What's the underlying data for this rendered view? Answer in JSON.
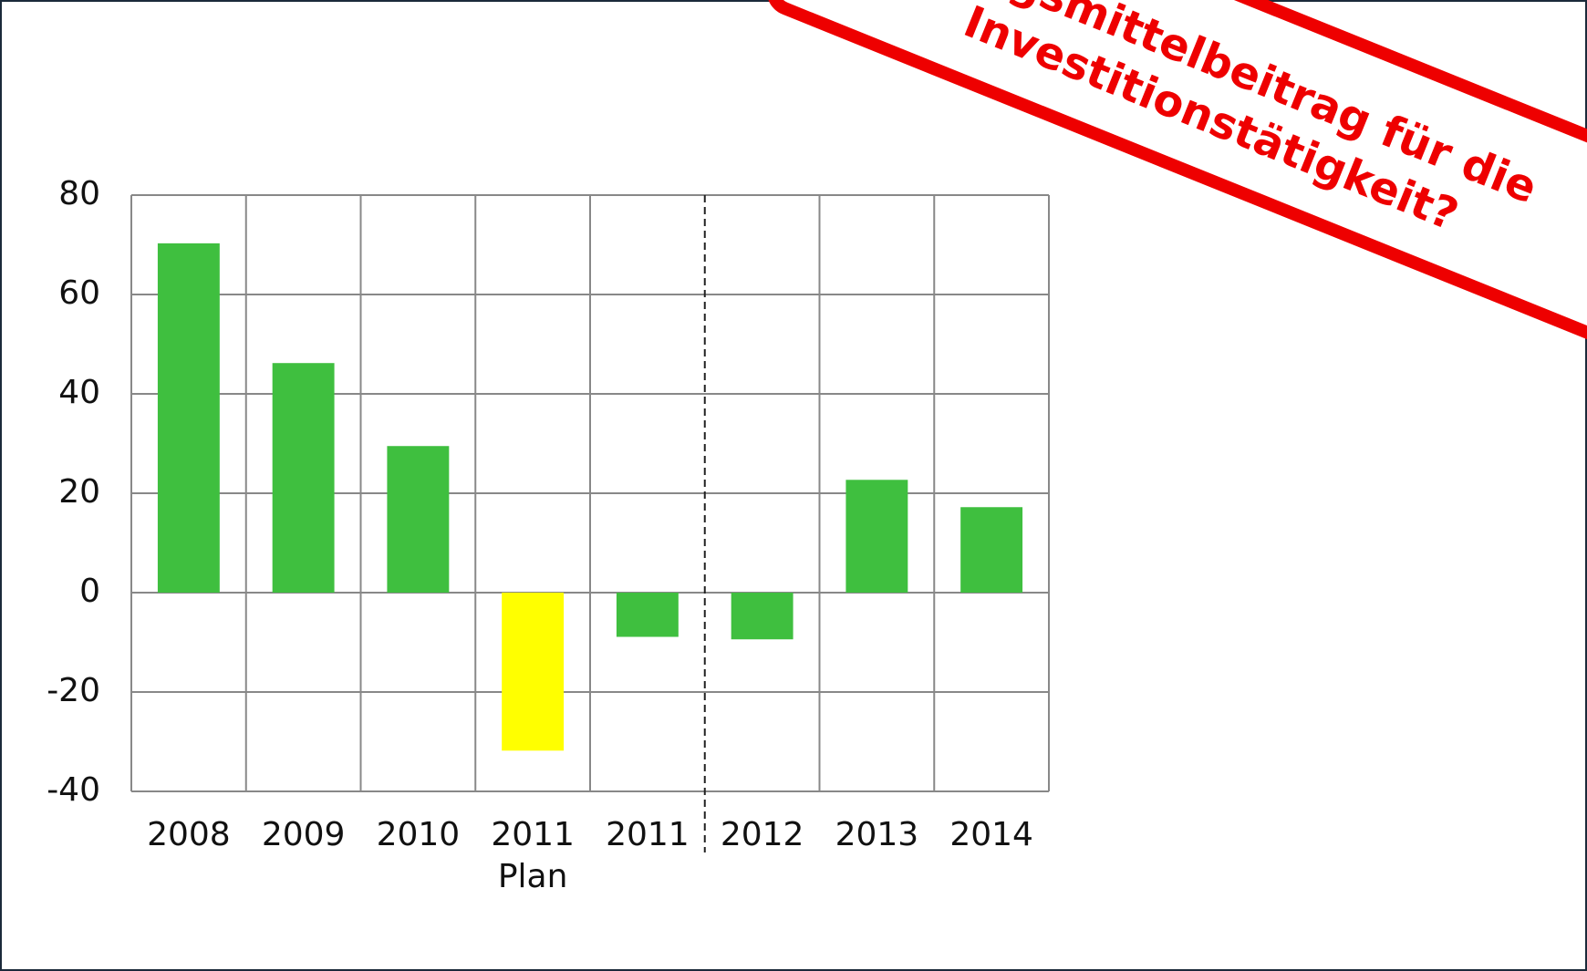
{
  "chart_data": {
    "type": "bar",
    "categories": [
      "2008",
      "2009",
      "2010",
      "2011",
      "2011",
      "2012",
      "2013",
      "2014"
    ],
    "category_sublabels": [
      null,
      null,
      null,
      "Plan",
      null,
      null,
      null,
      null
    ],
    "values": [
      70.3,
      46.2,
      29.5,
      -31.8,
      -8.9,
      -9.4,
      22.7,
      17.2
    ],
    "colors": [
      "#3fbf3f",
      "#3fbf3f",
      "#3fbf3f",
      "#ffff00",
      "#3fbf3f",
      "#3fbf3f",
      "#3fbf3f",
      "#3fbf3f"
    ],
    "ylim": [
      -40,
      80
    ],
    "yticks": [
      -40,
      -20,
      0,
      20,
      40,
      60,
      80
    ],
    "grid": true,
    "annotation": [
      "gsmittelbeitrag für die",
      "Investitionstätigkeit?"
    ]
  }
}
